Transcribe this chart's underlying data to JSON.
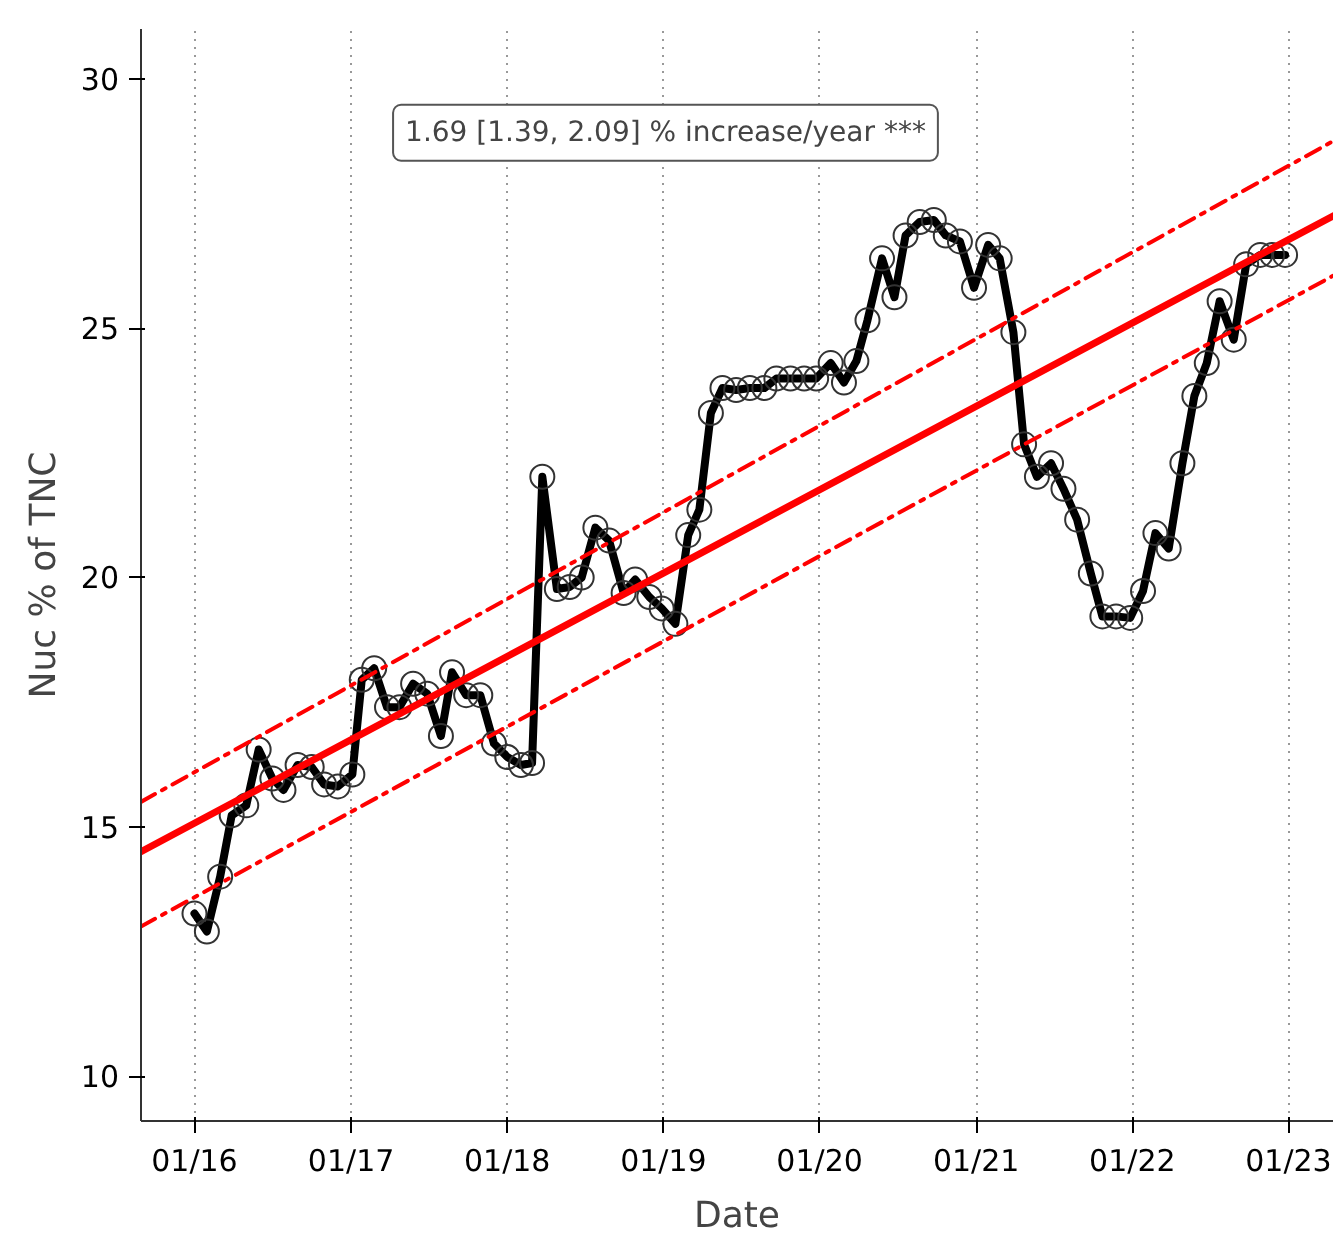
{
  "chart_data": {
    "type": "line",
    "xlabel": "Date",
    "ylabel": "Nuc % of TNC",
    "annotations": [
      "1.69 [1.39, 2.09] % increase/year ***"
    ],
    "x": [
      "2016-01-01",
      "2016-01-30",
      "2016-03-01",
      "2016-03-28",
      "2016-05-01",
      "2016-05-30",
      "2016-07-01",
      "2016-07-27",
      "2016-08-29",
      "2016-10-01",
      "2016-10-30",
      "2016-12-01",
      "2017-01-04",
      "2017-01-26",
      "2017-02-24",
      "2017-03-26",
      "2017-04-24",
      "2017-05-26",
      "2017-06-28",
      "2017-07-30",
      "2017-08-25",
      "2017-09-27",
      "2017-10-30",
      "2017-12-01",
      "2018-01-01",
      "2018-02-02",
      "2018-02-28",
      "2018-03-24",
      "2018-04-27",
      "2018-05-27",
      "2018-06-24",
      "2018-07-26",
      "2018-08-27",
      "2018-09-30",
      "2018-10-27",
      "2018-11-29",
      "2018-12-28",
      "2019-01-29",
      "2019-02-28",
      "2019-03-26",
      "2019-04-22",
      "2019-05-19",
      "2019-06-20",
      "2019-07-22",
      "2019-08-25",
      "2019-09-22",
      "2019-10-25",
      "2019-11-26",
      "2019-12-24",
      "2020-01-27",
      "2020-02-27",
      "2020-03-27",
      "2020-04-22",
      "2020-05-26",
      "2020-06-24",
      "2020-07-20",
      "2020-08-22",
      "2020-09-24",
      "2020-10-22",
      "2020-11-24",
      "2020-12-27",
      "2021-01-29",
      "2021-02-25",
      "2021-03-29",
      "2021-04-23",
      "2021-05-23",
      "2021-06-25",
      "2021-07-24",
      "2021-08-25",
      "2021-09-26",
      "2021-10-23",
      "2021-11-24",
      "2021-12-27",
      "2022-01-26",
      "2022-02-24",
      "2022-03-27",
      "2022-04-28",
      "2022-05-26",
      "2022-06-24",
      "2022-07-24",
      "2022-08-26",
      "2022-09-24",
      "2022-10-27",
      "2022-11-24",
      "2022-12-24"
    ],
    "series": [
      {
        "color": "#000000",
        "marker": "circle",
        "line_style": "solid",
        "values": [
          13.26,
          12.9,
          14.0,
          15.23,
          15.43,
          16.55,
          15.97,
          15.74,
          16.24,
          16.2,
          15.85,
          15.81,
          16.05,
          17.95,
          18.18,
          17.4,
          17.4,
          17.87,
          17.67,
          16.82,
          18.1,
          17.64,
          17.64,
          16.67,
          16.4,
          16.24,
          16.28,
          22.02,
          19.77,
          19.81,
          20.0,
          21.0,
          20.74,
          19.69,
          19.96,
          19.61,
          19.38,
          19.07,
          20.85,
          21.36,
          23.3,
          23.8,
          23.76,
          23.8,
          23.8,
          23.99,
          23.99,
          23.99,
          23.99,
          24.3,
          23.91,
          24.34,
          25.16,
          26.4,
          25.62,
          26.86,
          27.13,
          27.17,
          26.86,
          26.74,
          25.81,
          26.67,
          26.4,
          24.92,
          22.67,
          22.02,
          22.29,
          21.78,
          21.16,
          20.08,
          19.22,
          19.22,
          19.19,
          19.73,
          20.89,
          20.58,
          22.29,
          23.64,
          24.3,
          25.54,
          24.77,
          26.28,
          26.47,
          26.47,
          26.47
        ]
      },
      {
        "color": "#ff0000",
        "marker": "none",
        "line_style": "solid",
        "x": [
          "2015-08-29",
          "2023-04-15"
        ],
        "values": [
          14.5,
          27.25
        ]
      },
      {
        "color": "#ff0000",
        "marker": "none",
        "line_style": "dashdot",
        "x": [
          "2015-08-29",
          "2023-04-15"
        ],
        "values": [
          15.5,
          28.75
        ]
      },
      {
        "color": "#ff0000",
        "marker": "none",
        "line_style": "dashdot",
        "x": [
          "2015-08-29",
          "2023-04-15"
        ],
        "values": [
          13.0,
          26.05
        ]
      }
    ],
    "xlim": [
      "2015-08-29",
      "2023-04-15"
    ],
    "xticks": [
      {
        "value": "2016-01-01",
        "label": "01/16"
      },
      {
        "value": "2017-01-01",
        "label": "01/17"
      },
      {
        "value": "2018-01-01",
        "label": "01/18"
      },
      {
        "value": "2019-01-01",
        "label": "01/19"
      },
      {
        "value": "2020-01-01",
        "label": "01/20"
      },
      {
        "value": "2021-01-01",
        "label": "01/21"
      },
      {
        "value": "2022-01-01",
        "label": "01/22"
      },
      {
        "value": "2023-01-01",
        "label": "01/23"
      }
    ],
    "ylim": [
      9.1,
      31.0
    ],
    "yticks": [
      10,
      15,
      20,
      25,
      30
    ],
    "grid": "x"
  }
}
